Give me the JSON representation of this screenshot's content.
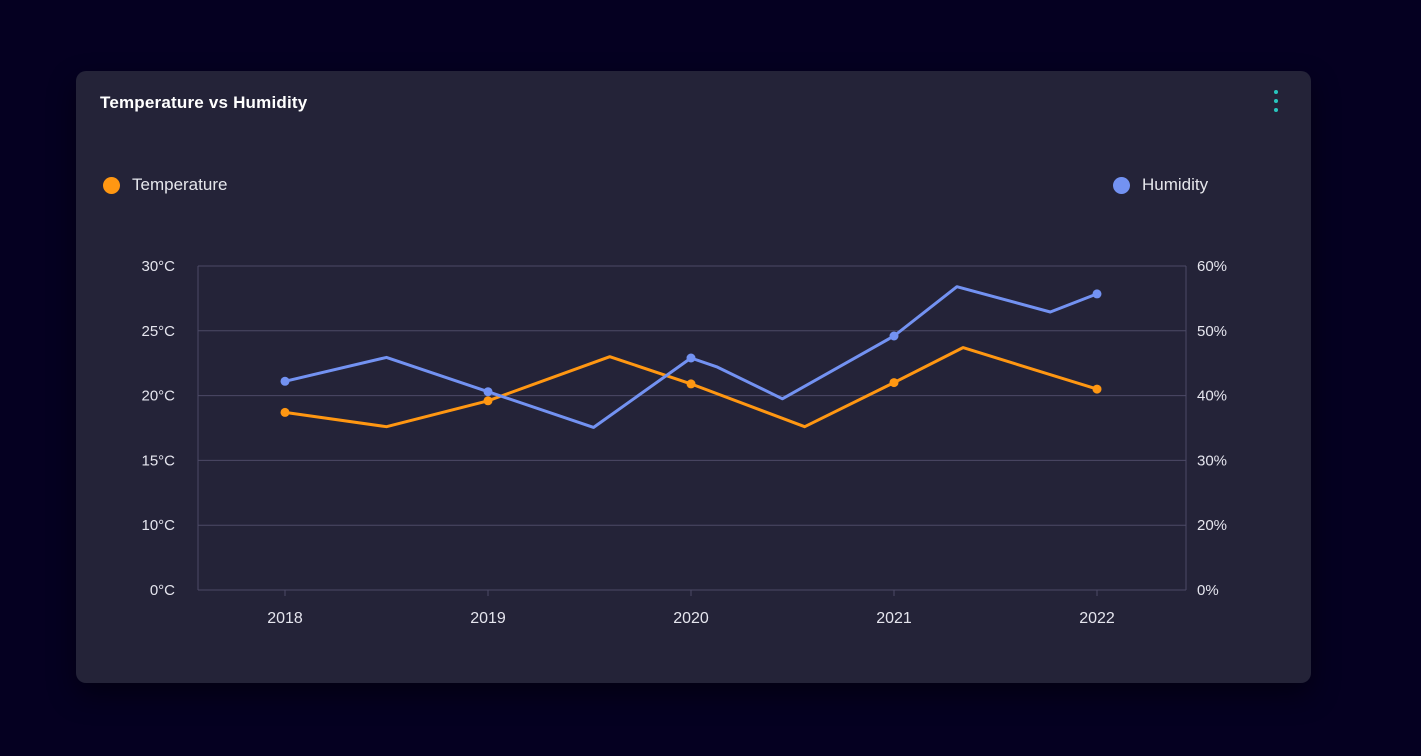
{
  "page": {
    "background_color": "#050021"
  },
  "card": {
    "title": "Temperature vs Humidity",
    "background_color": "#242338",
    "menu_icon": "kebab-menu-icon",
    "menu_icon_color": "#28c5bd"
  },
  "legend": [
    {
      "label": "Temperature",
      "color": "#ff9712"
    },
    {
      "label": "Humidity",
      "color": "#7392f2"
    }
  ],
  "chart_data": {
    "type": "line",
    "title": "Temperature vs Humidity",
    "grid": true,
    "legend_position": "top",
    "grid_color": "#4c4a66",
    "x_axis": {
      "tick_labels": [
        "2018",
        "2019",
        "2020",
        "2021",
        "2022"
      ],
      "tick_values": [
        2018,
        2019,
        2020,
        2021,
        2022
      ]
    },
    "left_axis": {
      "unit": "°C",
      "tick_labels": [
        "30°C",
        "25°C",
        "20°C",
        "15°C",
        "10°C",
        "0°C"
      ],
      "tick_values": [
        30,
        25,
        20,
        15,
        10,
        0
      ]
    },
    "right_axis": {
      "unit": "%",
      "tick_labels": [
        "60%",
        "50%",
        "40%",
        "30%",
        "20%",
        "0%"
      ],
      "tick_values": [
        60,
        50,
        40,
        30,
        20,
        0
      ]
    },
    "series": [
      {
        "name": "Temperature",
        "axis": "left",
        "color": "#ff9712",
        "points": [
          {
            "x": 2018,
            "v": 18.7
          },
          {
            "x": 2018.5,
            "v": 17.6
          },
          {
            "x": 2019,
            "v": 19.6
          },
          {
            "x": 2019.6,
            "v": 23.0
          },
          {
            "x": 2020,
            "v": 20.9
          },
          {
            "x": 2020.56,
            "v": 17.6
          },
          {
            "x": 2021,
            "v": 21.0
          },
          {
            "x": 2021.34,
            "v": 23.7
          },
          {
            "x": 2022,
            "v": 20.5
          }
        ]
      },
      {
        "name": "Humidity",
        "axis": "right",
        "color": "#7392f2",
        "points": [
          {
            "x": 2018,
            "v": 42.2
          },
          {
            "x": 2018.5,
            "v": 45.9
          },
          {
            "x": 2019,
            "v": 40.6
          },
          {
            "x": 2019.52,
            "v": 35.1
          },
          {
            "x": 2020,
            "v": 45.8
          },
          {
            "x": 2020.13,
            "v": 44.4
          },
          {
            "x": 2020.45,
            "v": 39.5
          },
          {
            "x": 2021,
            "v": 49.2
          },
          {
            "x": 2021.31,
            "v": 56.8
          },
          {
            "x": 2021.77,
            "v": 52.9
          },
          {
            "x": 2022,
            "v": 55.7
          }
        ]
      }
    ]
  }
}
